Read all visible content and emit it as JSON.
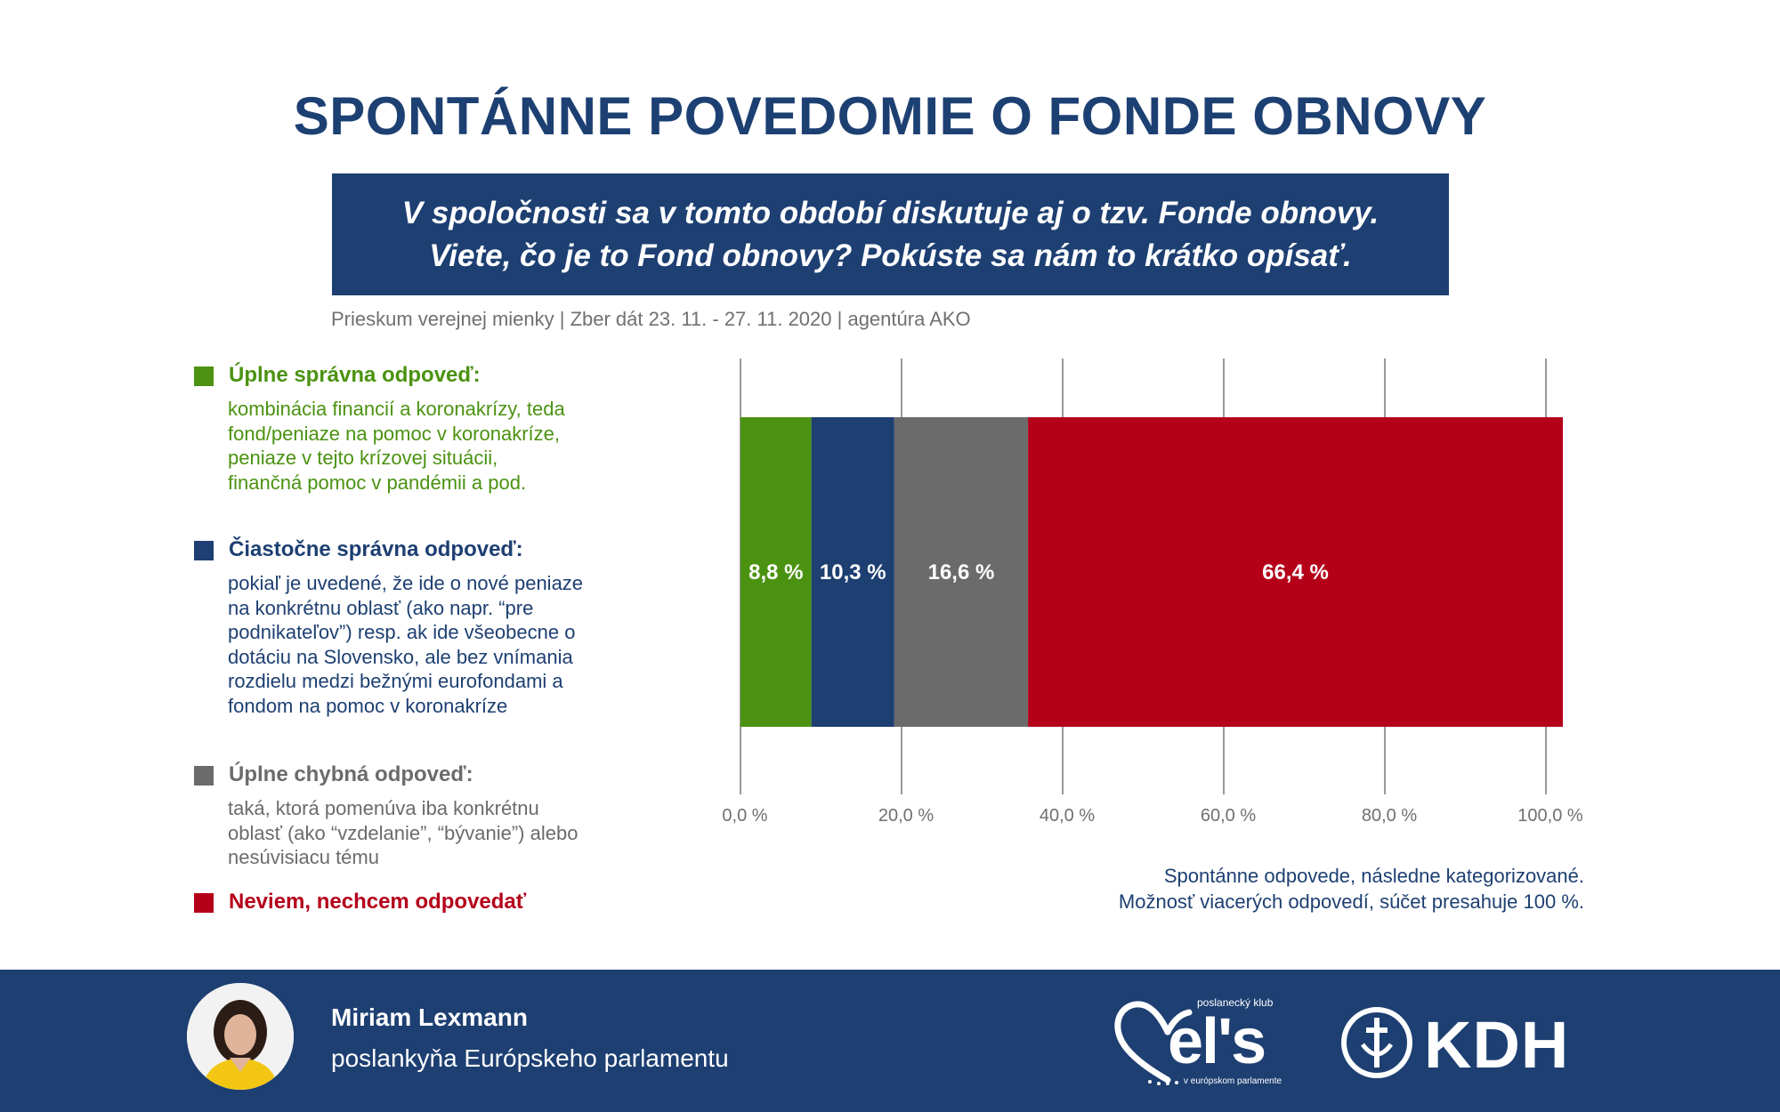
{
  "header": {
    "title": "SPONTÁNNE POVEDOMIE O FONDE OBNOVY",
    "question_line1": "V spoločnosti sa v tomto období diskutuje aj o tzv. Fonde obnovy.",
    "question_line2": "Viete, čo je to Fond obnovy? Pokúste sa nám to krátko opísať.",
    "source": "Prieskum verejnej mienky | Zber dát 23. 11. - 27. 11. 2020 | agentúra AKO"
  },
  "legend": [
    {
      "title": "Úplne správna odpoveď:",
      "description": "kombinácia financií a koronakrízy, teda fond/peniaze na pomoc v koronakríze, peniaze v tejto krízovej situácii, finančná pomoc v pandémii a pod.",
      "color": "#4b9211"
    },
    {
      "title": "Čiastočne správna odpoveď:",
      "description": "pokiaľ je uvedené, že ide o nové peniaze na konkrétnu oblasť (ako napr. “pre podnikateľov”) resp. ak ide všeobecne o dotáciu na Slovensko, ale bez vnímania rozdielu medzi bežnými eurofondami a fondom na pomoc v koronakríze",
      "color": "#1d3f72"
    },
    {
      "title": "Úplne chybná odpoveď:",
      "description": "taká, ktorá pomenúva iba konkrétnu oblasť (ako “vzdelanie”, “bývanie”) alebo nesúvisiacu tému",
      "color": "#6b6b6b"
    },
    {
      "title": "Neviem, nechcem odpovedať",
      "color": "#b5001a"
    }
  ],
  "chart_data": {
    "type": "bar",
    "orientation": "horizontal",
    "stacked": true,
    "categories": [
      ""
    ],
    "series": [
      {
        "name": "Úplne správna odpoveď",
        "values": [
          8.8
        ],
        "label": "8,8 %",
        "color": "#4b9211"
      },
      {
        "name": "Čiastočne správna odpoveď",
        "values": [
          10.3
        ],
        "label": "10,3 %",
        "color": "#1d3f72"
      },
      {
        "name": "Úplne chybná odpoveď",
        "values": [
          16.6
        ],
        "label": "16,6 %",
        "color": "#6b6b6b"
      },
      {
        "name": "Neviem, nechcem odpovedať",
        "values": [
          66.4
        ],
        "label": "66,4 %",
        "color": "#b5001a"
      }
    ],
    "xlim": [
      0,
      100
    ],
    "xticks": [
      0,
      20,
      40,
      60,
      80,
      100
    ],
    "xtick_labels": [
      "0,0 %",
      "20,0 %",
      "40,0 %",
      "60,0 %",
      "80,0 %",
      "100,0 %"
    ],
    "grid": true,
    "legend_position": "left"
  },
  "note": {
    "line1": "Spontánne odpovede, následne kategorizované.",
    "line2": "Možnosť viacerých odpovedí, súčet presahuje 100 %."
  },
  "footer": {
    "name": "Miriam Lexmann",
    "role": "poslankyňa Európskeho parlamentu",
    "els_top": "poslanecký klub",
    "els_word": "el's",
    "els_bottom": "v európskom parlamente",
    "kdh_word": "KDH"
  }
}
